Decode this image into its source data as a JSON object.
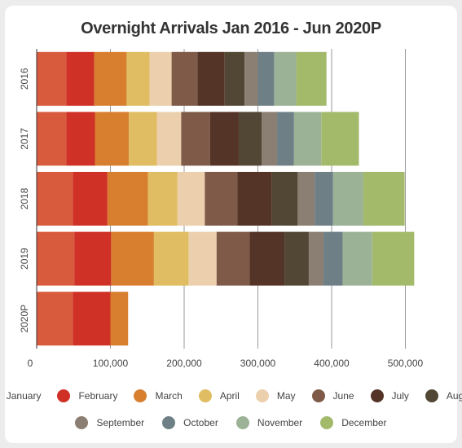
{
  "chart_data": {
    "type": "bar",
    "orientation": "horizontal",
    "stacked": true,
    "title": "Overnight Arrivals Jan 2016 - Jun 2020P",
    "categories": [
      "2016",
      "2017",
      "2018",
      "2019",
      "2020P"
    ],
    "x_ticks": [
      "0",
      "100,000",
      "200,000",
      "300,000",
      "400,000",
      "500,000"
    ],
    "xlim": [
      0,
      510000
    ],
    "grid": true,
    "legend_position": "bottom",
    "series": [
      {
        "name": "January",
        "color": "#d95b3d",
        "values": [
          40000,
          40000,
          49000,
          51000,
          49000
        ]
      },
      {
        "name": "February",
        "color": "#d03126",
        "values": [
          38000,
          39000,
          47000,
          50000,
          51000
        ]
      },
      {
        "name": "March",
        "color": "#d77f2f",
        "values": [
          44000,
          46000,
          55000,
          58000,
          24000
        ]
      },
      {
        "name": "April",
        "color": "#e0bc62",
        "values": [
          31000,
          38000,
          40000,
          47000,
          0
        ]
      },
      {
        "name": "May",
        "color": "#ecd0ad",
        "values": [
          30000,
          33000,
          37000,
          38000,
          0
        ]
      },
      {
        "name": "June",
        "color": "#7f5a48",
        "values": [
          35000,
          39000,
          44000,
          45000,
          0
        ]
      },
      {
        "name": "July",
        "color": "#553428",
        "values": [
          37000,
          39000,
          47000,
          47000,
          0
        ]
      },
      {
        "name": "August",
        "color": "#524734",
        "values": [
          27000,
          31000,
          35000,
          33000,
          0
        ]
      },
      {
        "name": "September",
        "color": "#8a7f72",
        "values": [
          18000,
          21000,
          23000,
          20000,
          0
        ]
      },
      {
        "name": "October",
        "color": "#6e8086",
        "values": [
          22000,
          23000,
          25000,
          26000,
          0
        ]
      },
      {
        "name": "November",
        "color": "#9cb296",
        "values": [
          30000,
          37000,
          41000,
          40000,
          0
        ]
      },
      {
        "name": "December",
        "color": "#a3ba6b",
        "values": [
          41000,
          51000,
          56000,
          57000,
          0
        ]
      }
    ]
  }
}
